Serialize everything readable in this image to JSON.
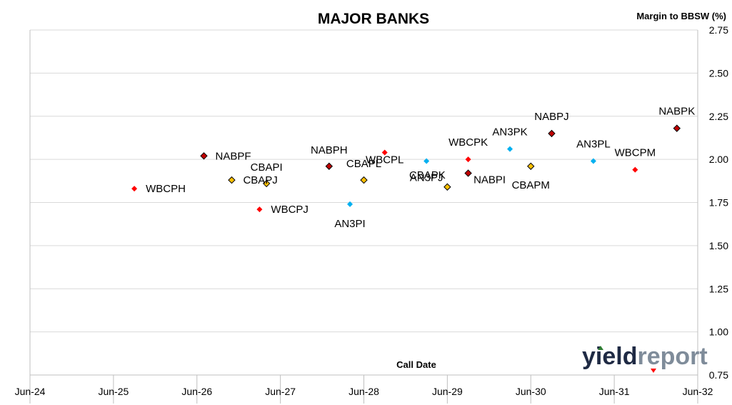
{
  "chart_data": {
    "type": "scatter",
    "title": "MAJOR BANKS",
    "ylabel": "Margin to BBSW (%)",
    "xlabel": "Call Date",
    "ylim": [
      0.75,
      2.75
    ],
    "yticks": [
      "0.75",
      "1.00",
      "1.25",
      "1.50",
      "1.75",
      "2.00",
      "2.25",
      "2.50",
      "2.75"
    ],
    "xticks": [
      "Jun-24",
      "Jun-25",
      "Jun-26",
      "Jun-27",
      "Jun-28",
      "Jun-29",
      "Jun-30",
      "Jun-31",
      "Jun-32"
    ],
    "xlim": [
      "2024-06",
      "2032-06"
    ],
    "grid": true,
    "legend": "none",
    "points": [
      {
        "label": "WBCPH",
        "x": "2025-09",
        "y": 1.83,
        "color": "#ff0000",
        "outlined": false
      },
      {
        "label": "NABPF",
        "x": "2026-07",
        "y": 2.02,
        "color": "#c00000",
        "outlined": true
      },
      {
        "label": "CBAPJ",
        "x": "2026-11",
        "y": 1.88,
        "color": "#ffc000",
        "outlined": true
      },
      {
        "label": "CBAPI",
        "x": "2027-04",
        "y": 1.86,
        "color": "#ffc000",
        "outlined": true
      },
      {
        "label": "WBCPJ",
        "x": "2027-03",
        "y": 1.71,
        "color": "#ff0000",
        "outlined": false
      },
      {
        "label": "NABPH",
        "x": "2028-01",
        "y": 1.96,
        "color": "#c00000",
        "outlined": true
      },
      {
        "label": "AN3PI",
        "x": "2028-04",
        "y": 1.74,
        "color": "#00b0f0",
        "outlined": false
      },
      {
        "label": "CBAPL",
        "x": "2028-06",
        "y": 1.88,
        "color": "#ffc000",
        "outlined": true
      },
      {
        "label": "WBCPL",
        "x": "2028-09",
        "y": 2.04,
        "color": "#ff0000",
        "outlined": false
      },
      {
        "label": "AN3PJ",
        "x": "2029-03",
        "y": 1.99,
        "color": "#00b0f0",
        "outlined": false
      },
      {
        "label": "CBAPK",
        "x": "2029-06",
        "y": 1.84,
        "color": "#ffc000",
        "outlined": true
      },
      {
        "label": "NABPI",
        "x": "2029-09",
        "y": 1.92,
        "color": "#c00000",
        "outlined": true
      },
      {
        "label": "WBCPK",
        "x": "2029-09",
        "y": 2.0,
        "color": "#ff0000",
        "outlined": false
      },
      {
        "label": "AN3PK",
        "x": "2030-03",
        "y": 2.06,
        "color": "#00b0f0",
        "outlined": false
      },
      {
        "label": "CBAPM",
        "x": "2030-06",
        "y": 1.96,
        "color": "#ffc000",
        "outlined": true
      },
      {
        "label": "NABPJ",
        "x": "2030-09",
        "y": 2.15,
        "color": "#c00000",
        "outlined": true
      },
      {
        "label": "AN3PL",
        "x": "2031-03",
        "y": 1.99,
        "color": "#00b0f0",
        "outlined": false
      },
      {
        "label": "WBCPM",
        "x": "2031-09",
        "y": 1.94,
        "color": "#ff0000",
        "outlined": false
      },
      {
        "label": "NABPK",
        "x": "2032-03",
        "y": 2.18,
        "color": "#c00000",
        "outlined": true
      }
    ]
  },
  "logo": {
    "part1": "yield",
    "part2": "report"
  }
}
